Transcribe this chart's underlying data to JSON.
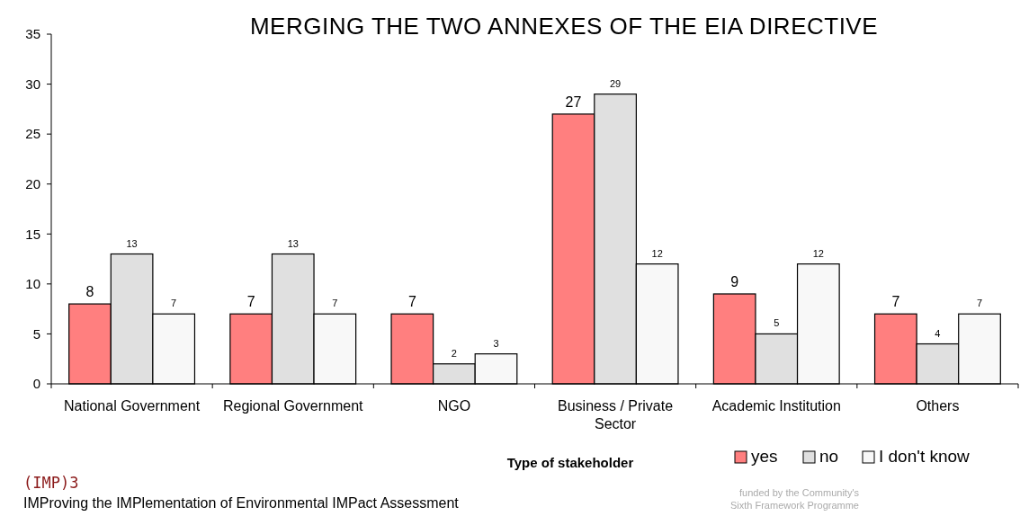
{
  "chart_data": {
    "type": "bar",
    "title": "MERGING THE TWO ANNEXES OF THE EIA DIRECTIVE",
    "xlabel": "Type of stakeholder",
    "categories": [
      "National Government",
      "Regional Government",
      "NGO",
      "Business / Private Sector",
      "Academic Institution",
      "Others"
    ],
    "series": [
      {
        "name": "yes",
        "color": "#ff7f7f",
        "values": [
          8,
          7,
          7,
          27,
          9,
          7
        ]
      },
      {
        "name": "no",
        "color": "#e0e0e0",
        "values": [
          13,
          13,
          2,
          29,
          5,
          4
        ]
      },
      {
        "name": "I don't know",
        "color": "#f8f8f8",
        "values": [
          7,
          7,
          3,
          12,
          12,
          7
        ]
      }
    ],
    "ylim": [
      0,
      35
    ],
    "yticks": [
      0,
      5,
      10,
      15,
      20,
      25,
      30,
      35
    ],
    "grid": false,
    "legend": "bottom right",
    "data_labels": true,
    "annotations": [
      "(IMP)3",
      "IMProving the IMPlementation of Environmental IMPact Assessment",
      "funded by the Community's Sixth Framework Programme"
    ]
  }
}
